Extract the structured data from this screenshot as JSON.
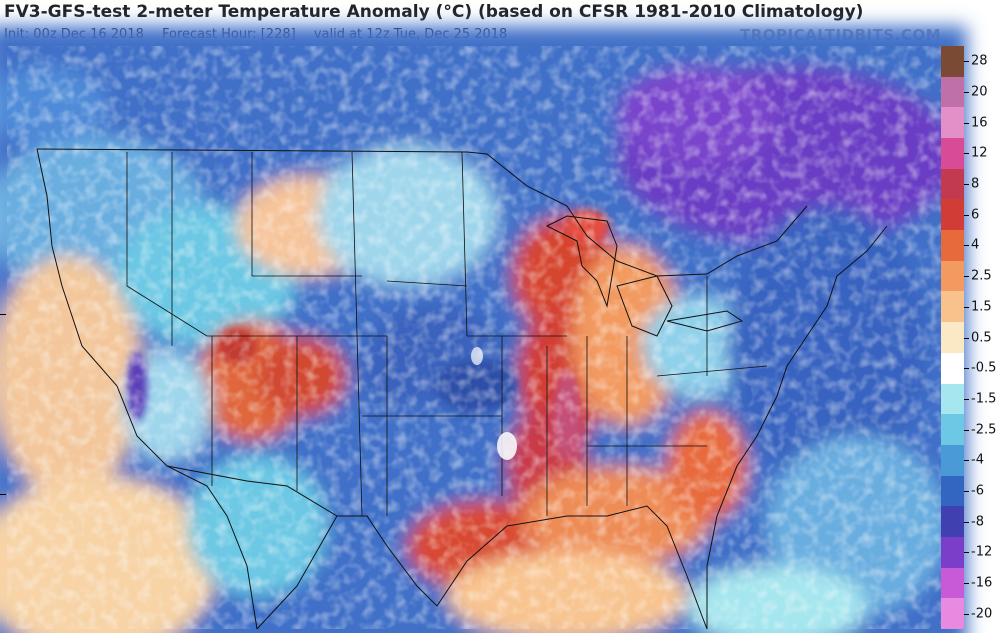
{
  "header": {
    "title": "FV3-GFS-test 2-meter Temperature Anomaly (°C) (based on CFSR 1981-2010 Climatology)",
    "init": "Init: 00z Dec 16 2018",
    "forecast_hour": "Forecast Hour: [228]",
    "valid": "valid at 12z Tue, Dec 25 2018",
    "brand": "TROPICALTIDBITS.COM"
  },
  "map": {
    "region": "Continental United States",
    "field": "2-meter temperature anomaly"
  },
  "colorbar": {
    "units": "°C",
    "entries": [
      {
        "label": "28",
        "color": "#7a4a35"
      },
      {
        "label": "20",
        "color": "#c070a8"
      },
      {
        "label": "16",
        "color": "#e490c8"
      },
      {
        "label": "12",
        "color": "#d84c96"
      },
      {
        "label": "8",
        "color": "#c23a50"
      },
      {
        "label": "6",
        "color": "#d23c36"
      },
      {
        "label": "4",
        "color": "#e66a3c"
      },
      {
        "label": "2.5",
        "color": "#f29a60"
      },
      {
        "label": "1.5",
        "color": "#f8c28c"
      },
      {
        "label": "0.5",
        "color": "#fbe8c4"
      },
      {
        "label": "-0.5",
        "color": "#ffffff"
      },
      {
        "label": "-1.5",
        "color": "#a6e6ee"
      },
      {
        "label": "-2.5",
        "color": "#6cc8e4"
      },
      {
        "label": "-4",
        "color": "#4a9ad8"
      },
      {
        "label": "-6",
        "color": "#3366c0"
      },
      {
        "label": "-8",
        "color": "#4040b0"
      },
      {
        "label": "-12",
        "color": "#7a3ec8"
      },
      {
        "label": "-16",
        "color": "#c85ad8"
      },
      {
        "label": "-20",
        "color": "#e88ae0"
      }
    ]
  }
}
